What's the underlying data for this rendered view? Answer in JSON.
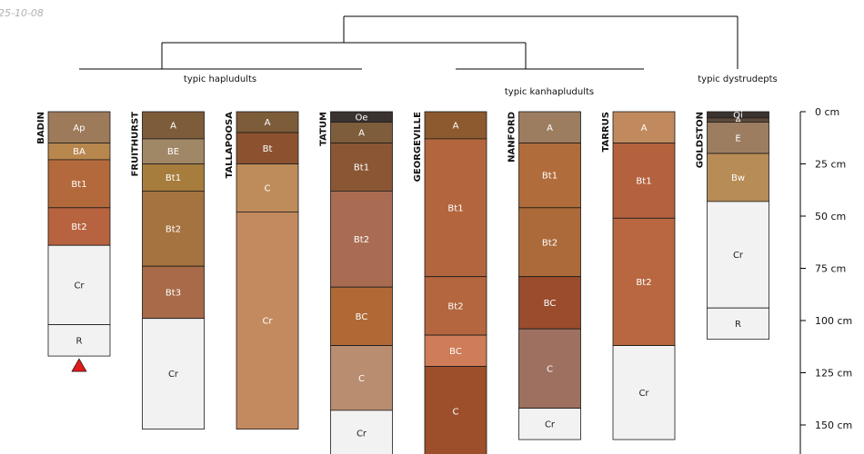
{
  "stamp": "25-10-08",
  "chart_data": {
    "type": "soil-profile-dendrogram",
    "depth_unit": "cm",
    "depth_range": [
      0,
      165
    ],
    "depth_ticks": [
      0,
      25,
      50,
      75,
      100,
      125,
      150
    ],
    "depth_tick_labels": [
      "0 cm",
      "25 cm",
      "50 cm",
      "75 cm",
      "100 cm",
      "125 cm",
      "150 cm"
    ],
    "groups": [
      {
        "label": "typic hapludults",
        "members": [
          "BADIN",
          "FRUITHURST",
          "TALLAPOOSA",
          "TATUM"
        ]
      },
      {
        "label": "typic kanhapludults",
        "members": [
          "GEORGEVILLE",
          "NANFORD",
          "TARRUS"
        ]
      },
      {
        "label": "typic dystrudepts",
        "members": [
          "GOLDSTON"
        ]
      }
    ],
    "profiles": [
      {
        "name": "BADIN",
        "marker": "red-triangle",
        "horizons": [
          {
            "name": "Ap",
            "top": 0,
            "bottom": 15,
            "color": "#9C7A5A"
          },
          {
            "name": "BA",
            "top": 15,
            "bottom": 23,
            "color": "#B8874E"
          },
          {
            "name": "Bt1",
            "top": 23,
            "bottom": 46,
            "color": "#B3693B"
          },
          {
            "name": "Bt2",
            "top": 46,
            "bottom": 64,
            "color": "#B86340"
          },
          {
            "name": "Cr",
            "top": 64,
            "bottom": 102,
            "color": "#F2F2F2"
          },
          {
            "name": "R",
            "top": 102,
            "bottom": 117,
            "color": "#F2F2F2"
          }
        ]
      },
      {
        "name": "FRUITHURST",
        "horizons": [
          {
            "name": "A",
            "top": 0,
            "bottom": 13,
            "color": "#7D5C3A"
          },
          {
            "name": "BE",
            "top": 13,
            "bottom": 25,
            "color": "#A08766"
          },
          {
            "name": "Bt1",
            "top": 25,
            "bottom": 38,
            "color": "#A77D3E"
          },
          {
            "name": "Bt2",
            "top": 38,
            "bottom": 74,
            "color": "#A5733F"
          },
          {
            "name": "Bt3",
            "top": 74,
            "bottom": 99,
            "color": "#A86A48"
          },
          {
            "name": "Cr",
            "top": 99,
            "bottom": 152,
            "color": "#F2F2F2"
          }
        ]
      },
      {
        "name": "TALLAPOOSA",
        "horizons": [
          {
            "name": "A",
            "top": 0,
            "bottom": 10,
            "color": "#7D5C3A"
          },
          {
            "name": "Bt",
            "top": 10,
            "bottom": 25,
            "color": "#8C5230"
          },
          {
            "name": "C",
            "top": 25,
            "bottom": 48,
            "color": "#BE8C5A"
          },
          {
            "name": "Cr",
            "top": 48,
            "bottom": 152,
            "color": "#C48A5F"
          }
        ]
      },
      {
        "name": "TATUM",
        "horizons": [
          {
            "name": "Oe",
            "top": 0,
            "bottom": 5,
            "color": "#3A3330"
          },
          {
            "name": "A",
            "top": 5,
            "bottom": 15,
            "color": "#7E5D3C"
          },
          {
            "name": "Bt1",
            "top": 15,
            "bottom": 38,
            "color": "#8A5634"
          },
          {
            "name": "Bt2",
            "top": 38,
            "bottom": 84,
            "color": "#A96C52"
          },
          {
            "name": "BC",
            "top": 84,
            "bottom": 112,
            "color": "#B06935"
          },
          {
            "name": "C",
            "top": 112,
            "bottom": 143,
            "color": "#B88D70"
          },
          {
            "name": "Cr",
            "top": 143,
            "bottom": 165,
            "color": "#F2F2F2"
          }
        ]
      },
      {
        "name": "GEORGEVILLE",
        "horizons": [
          {
            "name": "A",
            "top": 0,
            "bottom": 13,
            "color": "#8C5A2E"
          },
          {
            "name": "Bt1",
            "top": 13,
            "bottom": 79,
            "color": "#B3663E"
          },
          {
            "name": "Bt2",
            "top": 79,
            "bottom": 107,
            "color": "#B4663E"
          },
          {
            "name": "BC",
            "top": 107,
            "bottom": 122,
            "color": "#CE7D58"
          },
          {
            "name": "C",
            "top": 122,
            "bottom": 165,
            "color": "#9C4F2A"
          }
        ]
      },
      {
        "name": "NANFORD",
        "horizons": [
          {
            "name": "A",
            "top": 0,
            "bottom": 15,
            "color": "#9C7D60"
          },
          {
            "name": "Bt1",
            "top": 15,
            "bottom": 46,
            "color": "#B06C3A"
          },
          {
            "name": "Bt2",
            "top": 46,
            "bottom": 79,
            "color": "#AC6A3A"
          },
          {
            "name": "BC",
            "top": 79,
            "bottom": 104,
            "color": "#9A4C2D"
          },
          {
            "name": "C",
            "top": 104,
            "bottom": 142,
            "color": "#9E7060"
          },
          {
            "name": "Cr",
            "top": 142,
            "bottom": 157,
            "color": "#F2F2F2"
          }
        ]
      },
      {
        "name": "TARRUS",
        "horizons": [
          {
            "name": "A",
            "top": 0,
            "bottom": 15,
            "color": "#C08A5E"
          },
          {
            "name": "Bt1",
            "top": 15,
            "bottom": 51,
            "color": "#B4623E"
          },
          {
            "name": "Bt2",
            "top": 51,
            "bottom": 112,
            "color": "#B86740"
          },
          {
            "name": "Cr",
            "top": 112,
            "bottom": 157,
            "color": "#F2F2F2"
          }
        ]
      },
      {
        "name": "GOLDSTON",
        "horizons": [
          {
            "name": "Oi",
            "top": 0,
            "bottom": 3,
            "color": "#3A3330"
          },
          {
            "name": "A",
            "top": 3,
            "bottom": 5,
            "color": "#5E4A3C"
          },
          {
            "name": "E",
            "top": 5,
            "bottom": 20,
            "color": "#9C7D60"
          },
          {
            "name": "Bw",
            "top": 20,
            "bottom": 43,
            "color": "#B88C56"
          },
          {
            "name": "Cr",
            "top": 43,
            "bottom": 94,
            "color": "#F2F2F2"
          },
          {
            "name": "R",
            "top": 94,
            "bottom": 109,
            "color": "#F2F2F2"
          }
        ]
      }
    ]
  }
}
